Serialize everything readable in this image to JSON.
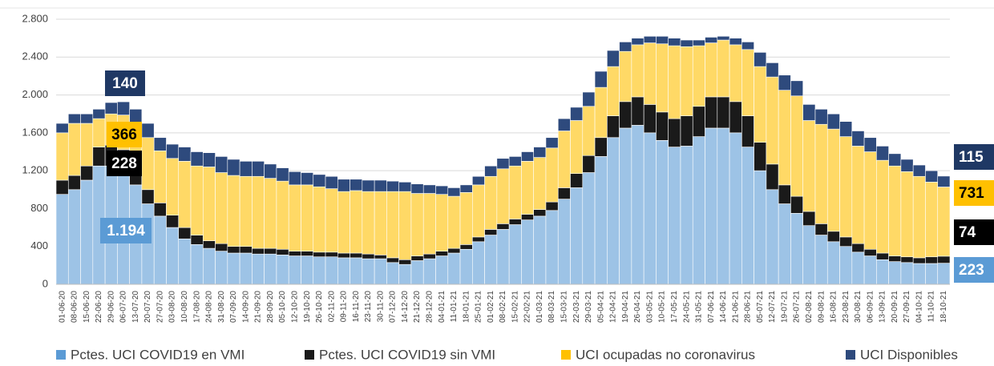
{
  "chart_data": {
    "type": "stacked-bar",
    "categories": [
      "01-06-20",
      "08-06-20",
      "15-06-20",
      "22-06-20",
      "29-06-20",
      "06-07-20",
      "13-07-20",
      "20-07-20",
      "27-07-20",
      "03-08-20",
      "10-08-20",
      "17-08-20",
      "24-08-20",
      "31-08-20",
      "07-09-20",
      "14-09-20",
      "21-09-20",
      "28-09-20",
      "05-10-20",
      "12-10-20",
      "19-10-20",
      "26-10-20",
      "02-11-20",
      "09-11-20",
      "16-11-20",
      "23-11-20",
      "30-11-20",
      "07-12-20",
      "14-12-20",
      "21-12-20",
      "28-12-20",
      "04-01-21",
      "11-01-21",
      "18-01-21",
      "25-01-21",
      "01-02-21",
      "08-02-21",
      "15-02-21",
      "22-02-21",
      "01-03-21",
      "08-03-21",
      "15-03-21",
      "22-03-21",
      "29-03-21",
      "05-04-21",
      "12-04-21",
      "19-04-21",
      "26-04-21",
      "03-05-21",
      "10-05-21",
      "17-05-21",
      "24-05-21",
      "31-05-21",
      "07-06-21",
      "14-06-21",
      "21-06-21",
      "28-06-21",
      "05-07-21",
      "12-07-21",
      "19-07-21",
      "26-07-21",
      "02-08-21",
      "09-08-21",
      "16-08-21",
      "23-08-21",
      "30-08-21",
      "06-09-21",
      "13-09-21",
      "20-09-21",
      "27-09-21",
      "04-10-21",
      "11-10-21",
      "18-10-21"
    ],
    "series": [
      {
        "name": "Pctes. UCI COVID19 en VMI",
        "color": "#9dc3e6",
        "values": [
          950,
          1000,
          1100,
          1250,
          1250,
          1194,
          1050,
          850,
          720,
          600,
          480,
          420,
          380,
          350,
          330,
          330,
          320,
          320,
          310,
          300,
          300,
          290,
          290,
          280,
          280,
          270,
          270,
          230,
          210,
          250,
          270,
          300,
          330,
          370,
          450,
          520,
          580,
          630,
          680,
          720,
          780,
          900,
          1020,
          1180,
          1350,
          1550,
          1650,
          1680,
          1600,
          1520,
          1450,
          1460,
          1560,
          1650,
          1650,
          1600,
          1450,
          1200,
          1000,
          850,
          750,
          620,
          520,
          450,
          400,
          340,
          300,
          260,
          240,
          230,
          220,
          220,
          223
        ]
      },
      {
        "name": "Pctes. UCI COVID19 sin VMI",
        "color": "#1a1a1a",
        "values": [
          150,
          150,
          150,
          200,
          220,
          228,
          200,
          150,
          140,
          130,
          120,
          100,
          80,
          80,
          70,
          70,
          60,
          60,
          60,
          50,
          50,
          50,
          50,
          50,
          50,
          50,
          40,
          50,
          50,
          50,
          50,
          50,
          50,
          50,
          50,
          60,
          60,
          60,
          60,
          70,
          90,
          120,
          150,
          180,
          200,
          230,
          280,
          300,
          300,
          300,
          300,
          320,
          320,
          330,
          330,
          330,
          330,
          300,
          270,
          200,
          180,
          150,
          120,
          110,
          100,
          90,
          70,
          70,
          60,
          60,
          60,
          70,
          74
        ]
      },
      {
        "name": "UCI ocupadas no coronavirus",
        "color": "#ffd966",
        "values": [
          500,
          550,
          450,
          300,
          330,
          366,
          450,
          550,
          550,
          600,
          700,
          730,
          780,
          750,
          750,
          740,
          760,
          740,
          720,
          700,
          700,
          690,
          670,
          650,
          660,
          660,
          670,
          700,
          720,
          660,
          640,
          600,
          550,
          550,
          550,
          560,
          580,
          560,
          560,
          550,
          570,
          600,
          560,
          520,
          530,
          520,
          530,
          550,
          650,
          720,
          770,
          730,
          640,
          570,
          600,
          600,
          700,
          800,
          920,
          1000,
          1060,
          960,
          1050,
          1080,
          1060,
          1030,
          1030,
          980,
          950,
          900,
          860,
          790,
          731
        ]
      },
      {
        "name": "UCI Disponibles",
        "color": "#2e4a7d",
        "values": [
          100,
          100,
          100,
          100,
          120,
          140,
          150,
          150,
          140,
          150,
          150,
          150,
          150,
          170,
          170,
          160,
          160,
          150,
          140,
          140,
          130,
          130,
          130,
          130,
          120,
          120,
          120,
          110,
          100,
          100,
          90,
          90,
          90,
          80,
          90,
          110,
          110,
          100,
          100,
          110,
          110,
          130,
          140,
          150,
          170,
          170,
          100,
          70,
          70,
          80,
          80,
          70,
          60,
          60,
          40,
          70,
          80,
          150,
          150,
          160,
          160,
          170,
          160,
          160,
          160,
          160,
          150,
          150,
          130,
          130,
          120,
          120,
          115
        ]
      }
    ],
    "ylim": [
      0,
      2800
    ],
    "yticks": [
      0,
      {
        "value": 400,
        "label": "400"
      },
      {
        "value": 800,
        "label": "800"
      },
      {
        "value": 1200,
        "label": "1.200"
      },
      {
        "value": 1600,
        "label": "1.600"
      },
      {
        "value": 2000,
        "label": "2.000"
      },
      {
        "value": 2400,
        "label": "2.400"
      },
      {
        "value": 2800,
        "label": "2.800"
      }
    ],
    "grid": true,
    "annotations": [
      {
        "text": "140",
        "color": "#1f3864"
      },
      {
        "text": "366",
        "color": "#ffc000"
      },
      {
        "text": "228",
        "color": "#000000"
      },
      {
        "text": "1.194",
        "color": "#5b9bd5"
      },
      {
        "text": "115",
        "color": "#1f3864"
      },
      {
        "text": "731",
        "color": "#ffc000"
      },
      {
        "text": "74",
        "color": "#000000"
      },
      {
        "text": "223",
        "color": "#5b9bd5"
      }
    ]
  }
}
